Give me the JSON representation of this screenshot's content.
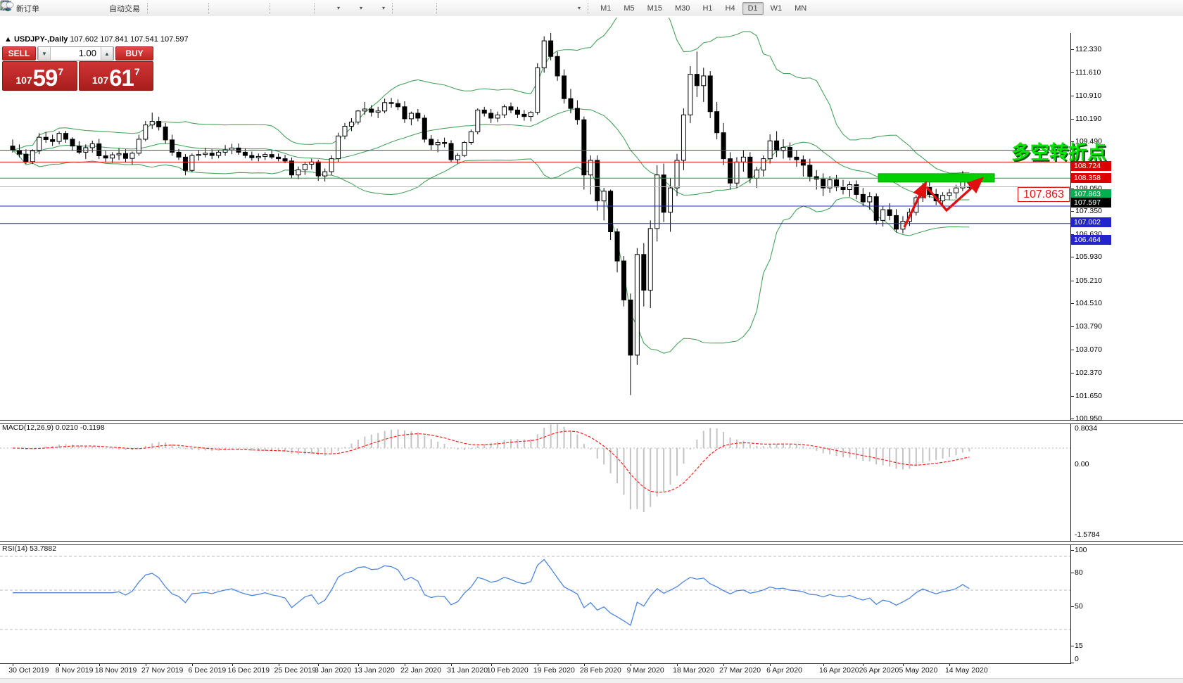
{
  "toolbar": {
    "new_order_label": "新订单",
    "autotrading_label": "自动交易",
    "timeframes": [
      "M1",
      "M5",
      "M15",
      "M30",
      "H1",
      "H4",
      "D1",
      "W1",
      "MN"
    ],
    "active_timeframe": "D1"
  },
  "trade_panel": {
    "sell_label": "SELL",
    "buy_label": "BUY",
    "volume": "1.00",
    "sell_price_prefix": "107",
    "sell_price_big": "59",
    "sell_price_sup": "7",
    "buy_price_prefix": "107",
    "buy_price_big": "61",
    "buy_price_sup": "7"
  },
  "chart_header": {
    "collapse_icon": "▲",
    "symbol": "USDJPY-,Daily",
    "ohlc_text": "107.602 107.841 107.541 107.597"
  },
  "annotations": {
    "turning_point_text": "多空转折点",
    "price_box_label": "107.863"
  },
  "price_axis": {
    "ticks": [
      112.33,
      111.61,
      110.91,
      110.19,
      109.49,
      108.05,
      107.35,
      106.63,
      105.93,
      105.21,
      104.51,
      103.79,
      103.07,
      102.37,
      101.65,
      100.95
    ],
    "badges": [
      {
        "text": "108.724",
        "price": 108.724,
        "color": "#dd0000"
      },
      {
        "text": "108.358",
        "price": 108.358,
        "color": "#dd0000"
      },
      {
        "text": "107.863",
        "price": 107.863,
        "color": "#00b050"
      },
      {
        "text": "107.597",
        "price": 107.597,
        "color": "#000000"
      },
      {
        "text": "107.002",
        "price": 107.002,
        "color": "#2424cc"
      },
      {
        "text": "106.464",
        "price": 106.464,
        "color": "#2424cc"
      }
    ]
  },
  "time_axis": {
    "labels": [
      "30 Oct 2019",
      "8 Nov 2019",
      "18 Nov 2019",
      "27 Nov 2019",
      "6 Dec 2019",
      "16 Dec 2019",
      "25 Dec 2019",
      "3 Jan 2020",
      "13 Jan 2020",
      "22 Jan 2020",
      "31 Jan 2020",
      "10 Feb 2020",
      "19 Feb 2020",
      "28 Feb 2020",
      "9 Mar 2020",
      "18 Mar 2020",
      "27 Mar 2020",
      "6 Apr 2020",
      "16 Apr 2020",
      "26 Apr 2020",
      "5 May 2020",
      "14 May 2020"
    ],
    "bar_indices": [
      0,
      7,
      13,
      20,
      27,
      33,
      40,
      46,
      52,
      59,
      66,
      72,
      79,
      86,
      93,
      100,
      107,
      114,
      122,
      128,
      134,
      141
    ]
  },
  "indicator_labels": {
    "macd": "MACD(12,26,9) 0.0210 -0.1198",
    "rsi": "RSI(14) 53.7882",
    "macd_axis": [
      "0.8034",
      "0.00",
      "-1.5784"
    ],
    "rsi_axis": [
      "100",
      "80",
      "50",
      "15",
      "0"
    ]
  },
  "chart_data": {
    "type": "candlestick",
    "title": "USDJPY-,Daily",
    "ylabel": "price",
    "y_range_visible": [
      100.95,
      112.33
    ],
    "grid": false,
    "ohlc": [
      [
        108.85,
        109.05,
        108.65,
        108.72
      ],
      [
        108.72,
        108.9,
        108.5,
        108.6
      ],
      [
        108.6,
        108.75,
        108.3,
        108.37
      ],
      [
        108.37,
        108.75,
        108.3,
        108.7
      ],
      [
        108.7,
        109.25,
        108.6,
        109.12
      ],
      [
        109.12,
        109.28,
        108.95,
        109.05
      ],
      [
        109.05,
        109.2,
        108.85,
        108.99
      ],
      [
        108.99,
        109.3,
        108.9,
        109.24
      ],
      [
        109.24,
        109.32,
        108.95,
        109.06
      ],
      [
        109.06,
        109.12,
        108.7,
        108.85
      ],
      [
        108.85,
        109.0,
        108.6,
        108.66
      ],
      [
        108.66,
        108.9,
        108.45,
        108.8
      ],
      [
        108.8,
        109.02,
        108.65,
        108.92
      ],
      [
        108.92,
        109.07,
        108.45,
        108.55
      ],
      [
        108.55,
        108.7,
        108.35,
        108.48
      ],
      [
        108.48,
        108.66,
        108.33,
        108.58
      ],
      [
        108.58,
        108.78,
        108.42,
        108.62
      ],
      [
        108.62,
        108.75,
        108.35,
        108.47
      ],
      [
        108.47,
        108.68,
        108.28,
        108.63
      ],
      [
        108.63,
        109.2,
        108.55,
        109.06
      ],
      [
        109.06,
        109.62,
        109.0,
        109.5
      ],
      [
        109.5,
        109.88,
        109.38,
        109.61
      ],
      [
        109.61,
        109.75,
        109.33,
        109.44
      ],
      [
        109.44,
        109.56,
        108.93,
        109.04
      ],
      [
        109.04,
        109.2,
        108.55,
        108.66
      ],
      [
        108.66,
        108.76,
        108.42,
        108.51
      ],
      [
        108.51,
        108.6,
        107.95,
        108.1
      ],
      [
        108.1,
        108.62,
        108.04,
        108.56
      ],
      [
        108.56,
        108.72,
        108.4,
        108.59
      ],
      [
        108.59,
        108.8,
        108.5,
        108.63
      ],
      [
        108.63,
        108.75,
        108.45,
        108.56
      ],
      [
        108.56,
        108.72,
        108.48,
        108.66
      ],
      [
        108.66,
        108.88,
        108.55,
        108.73
      ],
      [
        108.73,
        108.92,
        108.6,
        108.79
      ],
      [
        108.79,
        108.93,
        108.58,
        108.66
      ],
      [
        108.66,
        108.78,
        108.48,
        108.56
      ],
      [
        108.56,
        108.68,
        108.4,
        108.49
      ],
      [
        108.49,
        108.62,
        108.38,
        108.53
      ],
      [
        108.53,
        108.66,
        108.42,
        108.59
      ],
      [
        108.59,
        108.71,
        108.45,
        108.51
      ],
      [
        108.51,
        108.62,
        108.38,
        108.46
      ],
      [
        108.46,
        108.58,
        108.32,
        108.39
      ],
      [
        108.39,
        108.5,
        107.85,
        107.96
      ],
      [
        107.96,
        108.22,
        107.83,
        108.12
      ],
      [
        108.12,
        108.36,
        107.96,
        108.29
      ],
      [
        108.29,
        108.46,
        108.13,
        108.36
      ],
      [
        108.36,
        108.43,
        107.78,
        107.93
      ],
      [
        107.93,
        108.16,
        107.76,
        108.06
      ],
      [
        108.06,
        108.56,
        107.96,
        108.46
      ],
      [
        108.46,
        109.26,
        108.36,
        109.16
      ],
      [
        109.16,
        109.56,
        109.06,
        109.46
      ],
      [
        109.46,
        109.71,
        109.31,
        109.59
      ],
      [
        109.59,
        109.96,
        109.51,
        109.93
      ],
      [
        109.93,
        110.21,
        109.81,
        109.99
      ],
      [
        109.99,
        110.11,
        109.76,
        109.89
      ],
      [
        109.89,
        110.06,
        109.71,
        109.93
      ],
      [
        109.93,
        110.31,
        109.86,
        110.19
      ],
      [
        110.19,
        110.33,
        110.03,
        110.16
      ],
      [
        110.16,
        110.29,
        109.96,
        110.06
      ],
      [
        110.06,
        110.23,
        109.56,
        109.69
      ],
      [
        109.69,
        109.91,
        109.49,
        109.86
      ],
      [
        109.86,
        109.99,
        109.61,
        109.71
      ],
      [
        109.71,
        109.81,
        108.96,
        109.06
      ],
      [
        109.06,
        109.19,
        108.73,
        108.89
      ],
      [
        108.89,
        109.06,
        108.66,
        108.96
      ],
      [
        108.96,
        109.11,
        108.81,
        108.93
      ],
      [
        108.93,
        109.03,
        108.36,
        108.43
      ],
      [
        108.43,
        108.63,
        108.31,
        108.56
      ],
      [
        108.56,
        109.01,
        108.51,
        108.96
      ],
      [
        108.96,
        109.36,
        108.89,
        109.29
      ],
      [
        109.29,
        110.01,
        109.21,
        109.96
      ],
      [
        109.96,
        110.06,
        109.76,
        109.86
      ],
      [
        109.86,
        109.99,
        109.56,
        109.71
      ],
      [
        109.71,
        109.91,
        109.59,
        109.81
      ],
      [
        109.81,
        110.13,
        109.71,
        110.06
      ],
      [
        110.06,
        110.19,
        109.86,
        109.96
      ],
      [
        109.96,
        110.06,
        109.71,
        109.83
      ],
      [
        109.83,
        109.96,
        109.63,
        109.76
      ],
      [
        109.76,
        109.93,
        109.61,
        109.89
      ],
      [
        109.89,
        111.4,
        109.81,
        111.26
      ],
      [
        111.26,
        112.23,
        111.11,
        112.09
      ],
      [
        112.09,
        112.33,
        111.49,
        111.61
      ],
      [
        111.61,
        111.76,
        110.86,
        111.01
      ],
      [
        111.01,
        111.21,
        110.16,
        110.31
      ],
      [
        110.31,
        110.61,
        109.86,
        110.01
      ],
      [
        110.01,
        110.26,
        109.51,
        109.66
      ],
      [
        109.66,
        109.76,
        107.51,
        107.96
      ],
      [
        107.96,
        108.56,
        107.36,
        108.41
      ],
      [
        108.41,
        108.56,
        106.86,
        107.16
      ],
      [
        107.16,
        107.56,
        106.56,
        107.46
      ],
      [
        107.46,
        107.51,
        105.96,
        106.21
      ],
      [
        106.21,
        106.31,
        104.96,
        105.31
      ],
      [
        105.31,
        105.46,
        103.91,
        104.11
      ],
      [
        104.11,
        104.31,
        101.18,
        102.41
      ],
      [
        102.41,
        105.71,
        102.11,
        105.51
      ],
      [
        105.51,
        105.86,
        103.91,
        104.41
      ],
      [
        104.41,
        106.56,
        103.86,
        106.31
      ],
      [
        106.31,
        108.26,
        105.91,
        107.96
      ],
      [
        107.96,
        108.31,
        106.51,
        106.81
      ],
      [
        106.81,
        107.86,
        106.21,
        107.56
      ],
      [
        107.56,
        108.61,
        107.31,
        108.41
      ],
      [
        108.41,
        110.01,
        108.11,
        109.81
      ],
      [
        109.81,
        111.31,
        109.56,
        111.06
      ],
      [
        111.06,
        111.76,
        110.36,
        110.71
      ],
      [
        110.71,
        111.26,
        110.21,
        111.01
      ],
      [
        111.01,
        111.16,
        109.71,
        109.91
      ],
      [
        109.91,
        110.21,
        109.06,
        109.26
      ],
      [
        109.26,
        109.56,
        108.26,
        108.46
      ],
      [
        108.46,
        108.66,
        107.51,
        107.71
      ],
      [
        107.71,
        108.51,
        107.56,
        108.36
      ],
      [
        108.36,
        108.71,
        108.06,
        108.51
      ],
      [
        108.51,
        108.66,
        107.71,
        107.86
      ],
      [
        107.86,
        108.21,
        107.56,
        108.11
      ],
      [
        108.11,
        108.56,
        107.91,
        108.46
      ],
      [
        108.46,
        109.21,
        108.31,
        109.01
      ],
      [
        109.01,
        109.31,
        108.51,
        108.71
      ],
      [
        108.71,
        109.06,
        108.46,
        108.81
      ],
      [
        108.81,
        108.96,
        108.41,
        108.51
      ],
      [
        108.51,
        108.71,
        108.21,
        108.43
      ],
      [
        108.43,
        108.56,
        107.91,
        108.26
      ],
      [
        108.26,
        108.46,
        107.76,
        107.91
      ],
      [
        107.91,
        108.11,
        107.51,
        107.83
      ],
      [
        107.83,
        108.01,
        107.31,
        107.56
      ],
      [
        107.56,
        107.93,
        107.41,
        107.81
      ],
      [
        107.81,
        107.96,
        107.46,
        107.59
      ],
      [
        107.59,
        107.81,
        107.36,
        107.51
      ],
      [
        107.51,
        107.76,
        107.29,
        107.66
      ],
      [
        107.66,
        107.79,
        107.21,
        107.36
      ],
      [
        107.36,
        107.56,
        106.99,
        107.13
      ],
      [
        107.13,
        107.43,
        106.89,
        107.29
      ],
      [
        107.29,
        107.39,
        106.43,
        106.56
      ],
      [
        106.56,
        107.01,
        106.37,
        106.89
      ],
      [
        106.89,
        107.09,
        106.56,
        106.71
      ],
      [
        106.71,
        106.91,
        106.19,
        106.29
      ],
      [
        106.29,
        106.69,
        106.16,
        106.53
      ],
      [
        106.53,
        106.93,
        106.39,
        106.81
      ],
      [
        106.81,
        107.33,
        106.71,
        107.26
      ],
      [
        107.26,
        107.71,
        107.13,
        107.59
      ],
      [
        107.59,
        107.76,
        107.26,
        107.36
      ],
      [
        107.36,
        107.53,
        107.03,
        107.16
      ],
      [
        107.16,
        107.43,
        107.06,
        107.33
      ],
      [
        107.33,
        107.53,
        107.19,
        107.41
      ],
      [
        107.41,
        107.66,
        107.23,
        107.56
      ],
      [
        107.56,
        108.08,
        107.46,
        107.88
      ],
      [
        107.602,
        107.841,
        107.541,
        107.597
      ]
    ],
    "overlays": {
      "bollinger": {
        "period": 20,
        "deviation": 2,
        "color": "#4aa35d"
      },
      "hlines": [
        {
          "price": 108.724,
          "color": "#e81414",
          "width": 1
        },
        {
          "price": 108.358,
          "color": "#e81414",
          "width": 1
        },
        {
          "price": 107.863,
          "color": "#00a34a",
          "width": 1
        },
        {
          "price": 107.597,
          "color": "#b8b8b8",
          "width": 1
        },
        {
          "price": 107.002,
          "color": "#2424cc",
          "width": 1
        },
        {
          "price": 106.464,
          "color": "#2424cc",
          "width": 1
        }
      ],
      "rectangle": {
        "price_top": 108.0,
        "price_bottom": 107.74,
        "color": "#00cf00"
      }
    },
    "indicators": [
      {
        "type": "macd",
        "fast": 12,
        "slow": 26,
        "signal": 9,
        "current": 0.021,
        "signal_current": -0.1198,
        "axis": [
          0.8034,
          0.0,
          -1.5784
        ],
        "hist_color": "#c4c4c4",
        "signal_color": "#ff2020"
      },
      {
        "type": "rsi",
        "period": 14,
        "current": 53.7882,
        "levels": [
          80,
          50,
          15
        ],
        "axis": [
          100,
          80,
          50,
          15,
          0
        ],
        "color": "#4f86dc"
      }
    ]
  }
}
